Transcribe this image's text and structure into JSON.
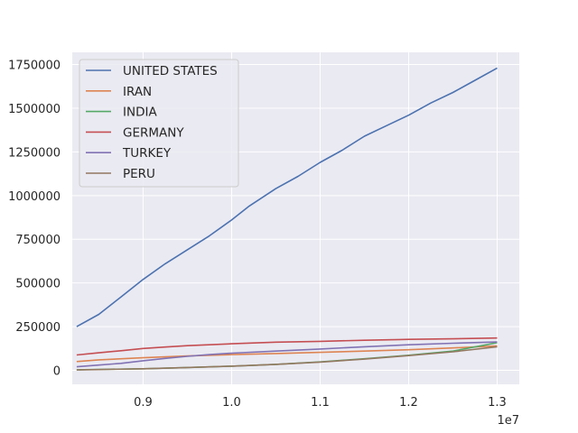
{
  "chart_data": {
    "type": "line",
    "title": "",
    "xlabel": "",
    "ylabel": "",
    "x_offset_label": "1e7",
    "xlim": [
      8200000,
      13250000
    ],
    "ylim": [
      -80000,
      1820000
    ],
    "x_ticks": [
      9000000,
      10000000,
      11000000,
      12000000,
      13000000
    ],
    "x_tick_labels": [
      "0.9",
      "1.0",
      "1.1",
      "1.2",
      "1.3"
    ],
    "y_ticks": [
      0,
      250000,
      500000,
      750000,
      1000000,
      1250000,
      1500000,
      1750000
    ],
    "y_tick_labels": [
      "0",
      "250000",
      "500000",
      "750000",
      "1000000",
      "1250000",
      "1500000",
      "1750000"
    ],
    "grid": true,
    "legend_position": "upper-left",
    "colors": {
      "background": "#eaeaf2",
      "grid": "#ffffff"
    },
    "series": [
      {
        "name": "UNITED STATES",
        "color": "#4c72b0",
        "points": [
          [
            8250000,
            250000
          ],
          [
            8500000,
            320000
          ],
          [
            8750000,
            420000
          ],
          [
            9000000,
            520000
          ],
          [
            9250000,
            610000
          ],
          [
            9500000,
            690000
          ],
          [
            9750000,
            770000
          ],
          [
            10000000,
            860000
          ],
          [
            10200000,
            940000
          ],
          [
            10500000,
            1040000
          ],
          [
            10750000,
            1110000
          ],
          [
            11000000,
            1190000
          ],
          [
            11250000,
            1260000
          ],
          [
            11500000,
            1340000
          ],
          [
            11750000,
            1400000
          ],
          [
            12000000,
            1460000
          ],
          [
            12250000,
            1530000
          ],
          [
            12500000,
            1590000
          ],
          [
            12750000,
            1660000
          ],
          [
            13000000,
            1730000
          ]
        ]
      },
      {
        "name": "IRAN",
        "color": "#dd8452",
        "points": [
          [
            8250000,
            50000
          ],
          [
            8500000,
            60000
          ],
          [
            9000000,
            72000
          ],
          [
            9500000,
            82000
          ],
          [
            10000000,
            90000
          ],
          [
            10500000,
            96000
          ],
          [
            11000000,
            103000
          ],
          [
            11500000,
            110000
          ],
          [
            12000000,
            118000
          ],
          [
            12500000,
            128000
          ],
          [
            13000000,
            140000
          ]
        ]
      },
      {
        "name": "INDIA",
        "color": "#55a868",
        "points": [
          [
            8250000,
            3000
          ],
          [
            8500000,
            5000
          ],
          [
            9000000,
            9000
          ],
          [
            9500000,
            16000
          ],
          [
            10000000,
            24000
          ],
          [
            10500000,
            34000
          ],
          [
            11000000,
            48000
          ],
          [
            11500000,
            66000
          ],
          [
            12000000,
            86000
          ],
          [
            12500000,
            110000
          ],
          [
            13000000,
            158000
          ]
        ]
      },
      {
        "name": "GERMANY",
        "color": "#c44e52",
        "points": [
          [
            8250000,
            88000
          ],
          [
            8500000,
            100000
          ],
          [
            8750000,
            112000
          ],
          [
            9000000,
            125000
          ],
          [
            9250000,
            133000
          ],
          [
            9500000,
            141000
          ],
          [
            10000000,
            152000
          ],
          [
            10500000,
            161000
          ],
          [
            11000000,
            166000
          ],
          [
            11500000,
            172000
          ],
          [
            11900000,
            176000
          ],
          [
            12000000,
            177000
          ],
          [
            12500000,
            180000
          ],
          [
            13000000,
            185000
          ]
        ]
      },
      {
        "name": "TURKEY",
        "color": "#8172b3",
        "points": [
          [
            8250000,
            20000
          ],
          [
            8500000,
            30000
          ],
          [
            8750000,
            40000
          ],
          [
            9000000,
            55000
          ],
          [
            9250000,
            68000
          ],
          [
            9500000,
            80000
          ],
          [
            9750000,
            90000
          ],
          [
            10000000,
            98000
          ],
          [
            10500000,
            110000
          ],
          [
            11000000,
            122000
          ],
          [
            11500000,
            135000
          ],
          [
            12000000,
            146000
          ],
          [
            12500000,
            155000
          ],
          [
            13000000,
            162000
          ]
        ]
      },
      {
        "name": "PERU",
        "color": "#937860",
        "points": [
          [
            8250000,
            2000
          ],
          [
            8500000,
            4000
          ],
          [
            9000000,
            9000
          ],
          [
            9500000,
            16000
          ],
          [
            10000000,
            24000
          ],
          [
            10500000,
            34000
          ],
          [
            11000000,
            47000
          ],
          [
            11500000,
            64000
          ],
          [
            12000000,
            84000
          ],
          [
            12500000,
            106000
          ],
          [
            13000000,
            135000
          ]
        ]
      }
    ]
  }
}
